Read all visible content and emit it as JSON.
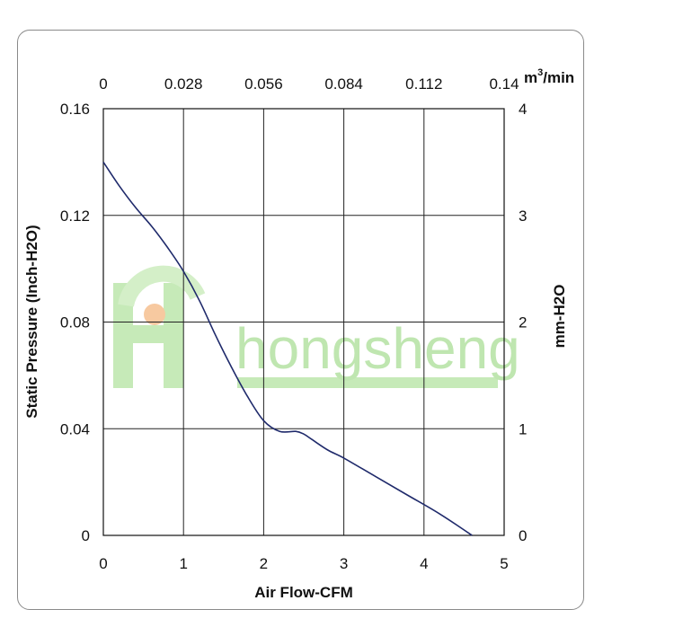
{
  "chart_data": {
    "type": "line",
    "xlabel": "Air Flow-CFM",
    "ylabel": "Static Pressure (Inch-H2O)",
    "y2label": "mm-H2O",
    "x2unit_base": "m",
    "x2unit_sup": "3",
    "x2unit_tail": "/min",
    "xlim": [
      0,
      5
    ],
    "ylim": [
      0,
      0.16
    ],
    "y2lim": [
      0,
      4
    ],
    "x2lim": [
      0,
      0.14
    ],
    "xticks": [
      "0",
      "1",
      "2",
      "3",
      "4",
      "5"
    ],
    "yticks": [
      "0",
      "0.04",
      "0.08",
      "0.12",
      "0.16"
    ],
    "y2ticks": [
      "0",
      "1",
      "2",
      "3",
      "4"
    ],
    "x2ticks": [
      "0",
      "0.028",
      "0.056",
      "0.084",
      "0.112",
      "0.14"
    ],
    "grid": true,
    "line_color": "#1f2a6b",
    "series": [
      {
        "x": [
          0,
          0.2,
          0.4,
          0.6,
          0.8,
          1.0,
          1.2,
          1.4,
          1.6,
          1.8,
          2.0,
          2.2,
          2.4,
          2.5,
          2.6,
          2.8,
          3.0,
          3.4,
          3.8,
          4.2,
          4.6
        ],
        "y": [
          0.14,
          0.131,
          0.123,
          0.116,
          0.108,
          0.099,
          0.088,
          0.075,
          0.063,
          0.052,
          0.043,
          0.039,
          0.039,
          0.038,
          0.036,
          0.032,
          0.029,
          0.022,
          0.015,
          0.008,
          0.0
        ]
      }
    ]
  },
  "watermark": {
    "text": "hongsheng",
    "color": "#bfe6b0",
    "accent": "#f7c9a0"
  }
}
